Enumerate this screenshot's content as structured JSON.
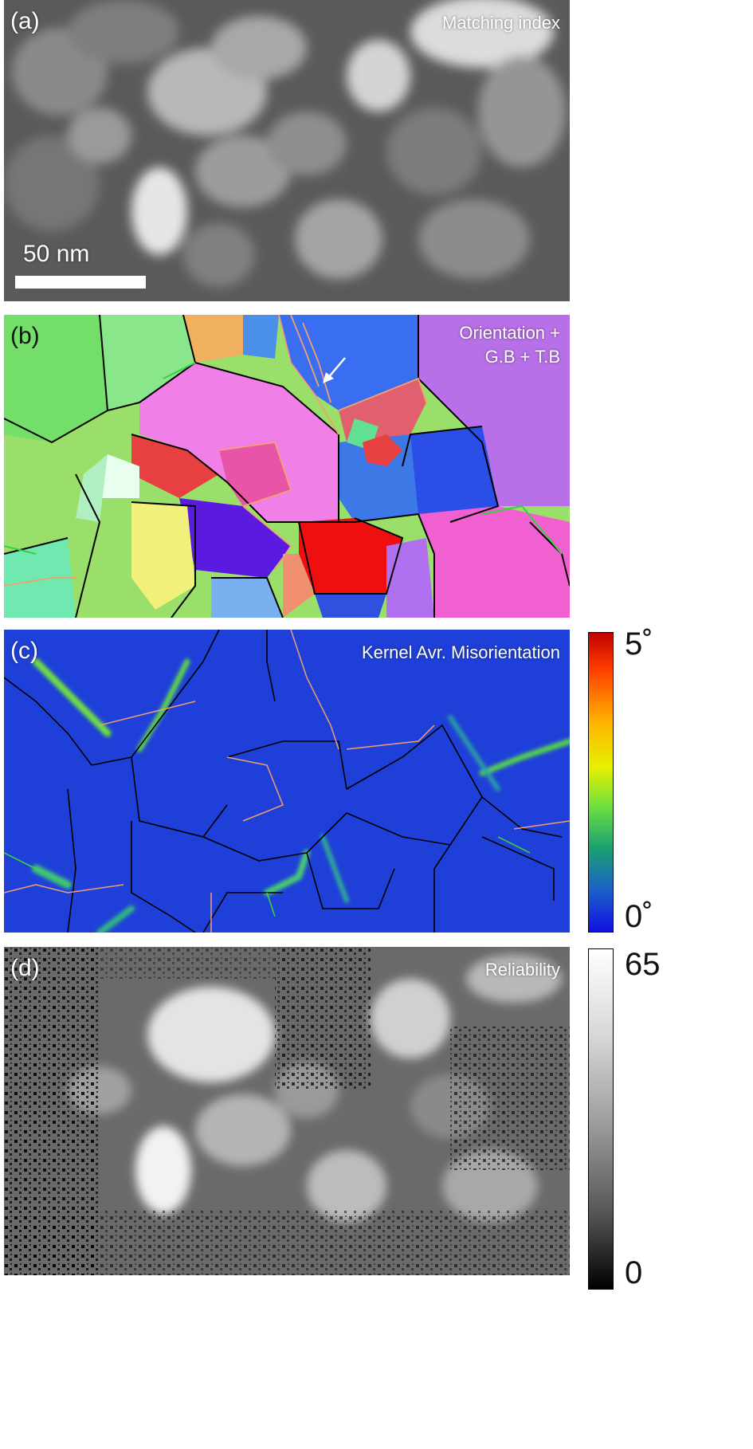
{
  "panels": {
    "a": {
      "label": "(a)",
      "title": "Matching index",
      "scale_bar": "50 nm"
    },
    "b": {
      "label": "(b)",
      "title_line1": "Orientation +",
      "title_line2": "G.B + T.B"
    },
    "c": {
      "label": "(c)",
      "title": "Kernel Avr. Misorientation"
    },
    "d": {
      "label": "(d)",
      "title": "Reliability"
    }
  },
  "colorbars": {
    "c": {
      "max_label": "5˚",
      "min_label": "0˚"
    },
    "d": {
      "max_label": "65",
      "min_label": "0"
    }
  }
}
